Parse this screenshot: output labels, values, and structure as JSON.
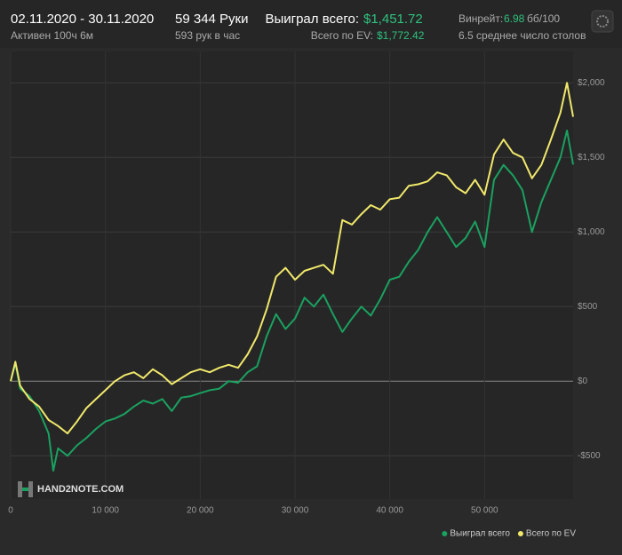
{
  "header": {
    "date_range": "02.11.2020 - 30.11.2020",
    "active": "Активен 100ч 6м",
    "hands": "59 344 Руки",
    "hands_per_hour": "593 рук в час",
    "won_label": "Выиграл всего:",
    "won_value": "$1,451.72",
    "ev_label": "Всего по EV:",
    "ev_value": "$1,772.42",
    "winrate_label": "Винрейт:",
    "winrate_value": "6.98",
    "winrate_unit": "бб/100",
    "tables": "6.5 среднее число столов"
  },
  "watermark": "HAND2NOTE.COM",
  "chart_data": {
    "type": "line",
    "x": [
      0,
      500,
      1000,
      2000,
      3000,
      4000,
      4500,
      5000,
      6000,
      7000,
      8000,
      9000,
      10000,
      11000,
      12000,
      13000,
      14000,
      15000,
      16000,
      17000,
      18000,
      19000,
      20000,
      21000,
      22000,
      23000,
      24000,
      25000,
      26000,
      27000,
      28000,
      29000,
      30000,
      31000,
      32000,
      33000,
      34000,
      35000,
      36000,
      37000,
      38000,
      39000,
      40000,
      41000,
      42000,
      43000,
      44000,
      45000,
      46000,
      47000,
      48000,
      49000,
      50000,
      51000,
      52000,
      53000,
      54000,
      55000,
      56000,
      57000,
      58000,
      58700,
      59344
    ],
    "series": [
      {
        "name": "Выиграл всего",
        "color": "#1aa160",
        "values": [
          0,
          120,
          -50,
          -100,
          -200,
          -350,
          -600,
          -450,
          -500,
          -430,
          -380,
          -320,
          -270,
          -250,
          -220,
          -170,
          -130,
          -150,
          -120,
          -200,
          -110,
          -100,
          -80,
          -60,
          -50,
          0,
          -10,
          60,
          100,
          300,
          450,
          350,
          420,
          560,
          500,
          580,
          450,
          330,
          420,
          500,
          440,
          550,
          680,
          700,
          800,
          880,
          1000,
          1100,
          1000,
          900,
          960,
          1070,
          900,
          1350,
          1450,
          1380,
          1280,
          1000,
          1200,
          1350,
          1500,
          1680,
          1452
        ]
      },
      {
        "name": "Всего по EV",
        "color": "#f0e86a",
        "values": [
          0,
          130,
          -30,
          -120,
          -170,
          -260,
          -280,
          -300,
          -350,
          -270,
          -180,
          -120,
          -60,
          0,
          40,
          60,
          20,
          80,
          40,
          -20,
          20,
          60,
          80,
          60,
          90,
          110,
          90,
          180,
          300,
          480,
          700,
          760,
          680,
          740,
          760,
          780,
          720,
          1080,
          1050,
          1120,
          1180,
          1150,
          1220,
          1230,
          1310,
          1320,
          1340,
          1400,
          1380,
          1300,
          1260,
          1350,
          1250,
          1520,
          1620,
          1530,
          1500,
          1360,
          1450,
          1620,
          1800,
          2000,
          1772
        ]
      }
    ],
    "xlim": [
      0,
      59344
    ],
    "xticks": [
      0,
      {
        "value": 10000,
        "label": "10 000"
      },
      {
        "value": 20000,
        "label": "20 000"
      },
      {
        "value": 30000,
        "label": "30 000"
      },
      {
        "value": 40000,
        "label": "40 000"
      },
      {
        "value": 50000,
        "label": "50 000"
      }
    ],
    "ylim": [
      -790,
      2210
    ],
    "yticks": [
      {
        "value": -500,
        "label": "-$500"
      },
      {
        "value": 0,
        "label": "$0"
      },
      {
        "value": 500,
        "label": "$500"
      },
      {
        "value": 1000,
        "label": "$1,000"
      },
      {
        "value": 1500,
        "label": "$1,500"
      },
      {
        "value": 2000,
        "label": "$2,000"
      }
    ],
    "grid": true
  }
}
